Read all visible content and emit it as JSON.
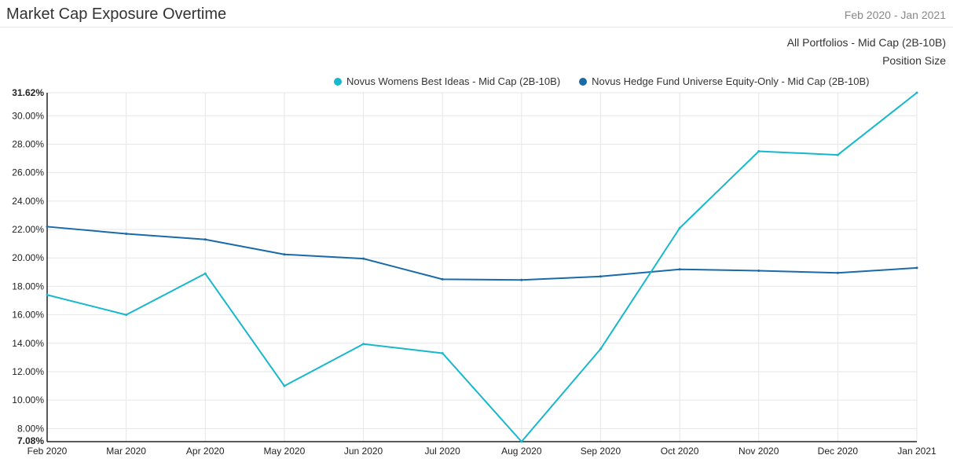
{
  "header": {
    "title": "Market Cap Exposure Overtime",
    "date_range": "Feb 2020 - Jan 2021",
    "subtitle": "All Portfolios - Mid Cap (2B-10B)",
    "metric": "Position Size"
  },
  "colors": {
    "series1": "#17b8cc",
    "series2": "#1a6aa8",
    "grid": "#e6e6e6",
    "axis": "#222222"
  },
  "chart_data": {
    "type": "line",
    "categories": [
      "Feb 2020",
      "Mar 2020",
      "Apr 2020",
      "May 2020",
      "Jun 2020",
      "Jul 2020",
      "Aug 2020",
      "Sep 2020",
      "Oct 2020",
      "Nov 2020",
      "Dec 2020",
      "Jan 2021"
    ],
    "series": [
      {
        "name": "Novus Womens Best Ideas - Mid Cap (2B-10B)",
        "values": [
          17.4,
          16.0,
          18.9,
          11.0,
          13.95,
          13.3,
          7.08,
          13.6,
          22.1,
          27.5,
          27.25,
          31.62
        ]
      },
      {
        "name": "Novus Hedge Fund Universe Equity-Only - Mid Cap (2B-10B)",
        "values": [
          22.2,
          21.7,
          21.3,
          20.25,
          19.95,
          18.5,
          18.45,
          18.7,
          19.2,
          19.1,
          18.95,
          19.3
        ]
      }
    ],
    "ylim": [
      7.08,
      31.62
    ],
    "yticks": [
      8,
      10,
      12,
      14,
      16,
      18,
      20,
      22,
      24,
      26,
      28,
      30
    ],
    "ymin_label": "7.08%",
    "ymax_label": "31.62%",
    "grid": true,
    "legend": "top-right"
  }
}
